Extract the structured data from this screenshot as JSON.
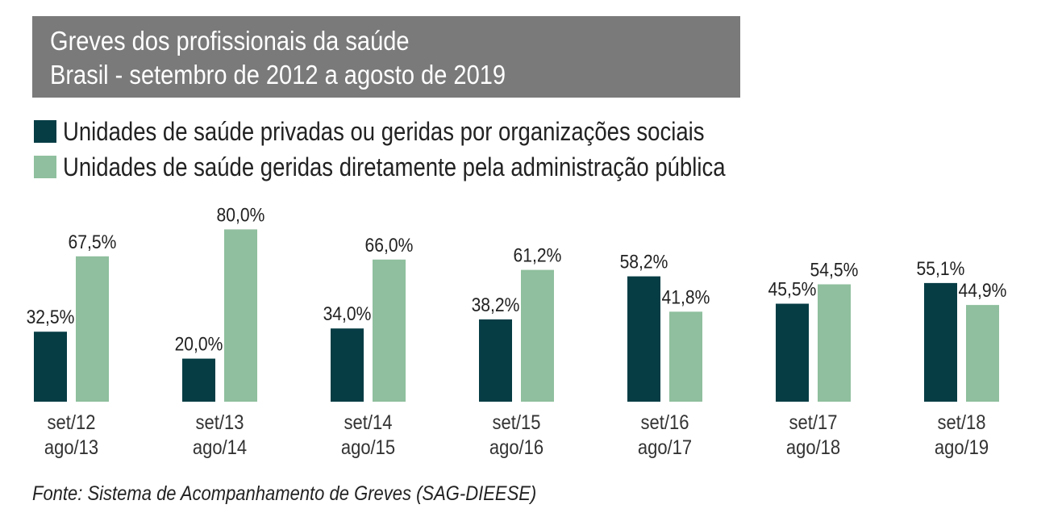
{
  "chart_data": {
    "type": "bar",
    "title": "Greves dos profissionais da saúde",
    "subtitle": "Brasil - setembro de 2012 a agosto de 2019",
    "categories": [
      [
        "set/12",
        "ago/13"
      ],
      [
        "set/13",
        "ago/14"
      ],
      [
        "set/14",
        "ago/15"
      ],
      [
        "set/15",
        "ago/16"
      ],
      [
        "set/16",
        "ago/17"
      ],
      [
        "set/17",
        "ago/18"
      ],
      [
        "set/18",
        "ago/19"
      ]
    ],
    "series": [
      {
        "name": "Unidades de saúde privadas ou geridas por organizações sociais",
        "color": "#063d45",
        "values": [
          32.5,
          20.0,
          34.0,
          38.2,
          58.2,
          45.5,
          55.1
        ],
        "labels": [
          "32,5%",
          "20,0%",
          "34,0%",
          "38,2%",
          "58,2%",
          "45,5%",
          "55,1%"
        ]
      },
      {
        "name": "Unidades de saúde geridas diretamente pela administração pública",
        "color": "#8fbf9e",
        "values": [
          67.5,
          80.0,
          66.0,
          61.2,
          41.8,
          54.5,
          44.9
        ],
        "labels": [
          "67,5%",
          "80,0%",
          "66,0%",
          "61,2%",
          "41,8%",
          "54,5%",
          "44,9%"
        ]
      }
    ],
    "xlabel": "",
    "ylabel": "",
    "ylim": [
      0,
      80
    ],
    "grid": false,
    "legend_position": "top-left",
    "source": "Fonte: Sistema de Acompanhamento de Greves (SAG-DIEESE)"
  }
}
